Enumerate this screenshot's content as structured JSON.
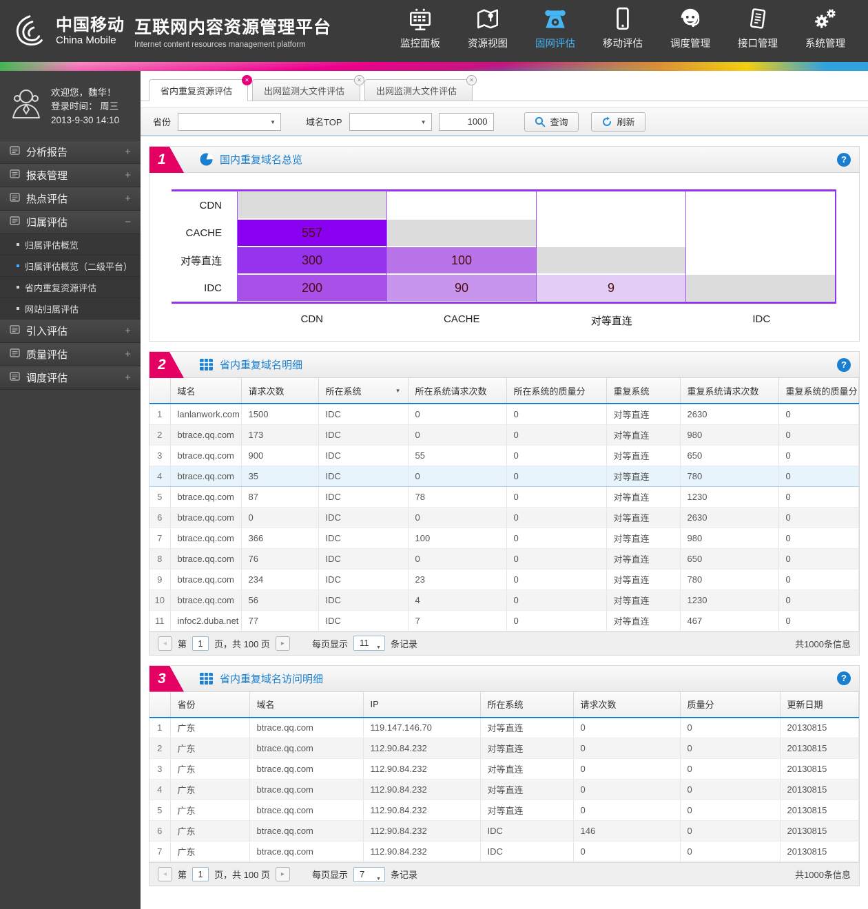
{
  "header": {
    "brand_cn": "中国移动",
    "brand_en": "China Mobile",
    "title": "互联网内容资源管理平台",
    "subtitle": "Internet content resources management platform",
    "nav": [
      {
        "label": "监控面板",
        "icon": "dashboard-icon",
        "active": false
      },
      {
        "label": "资源视图",
        "icon": "map-icon",
        "active": false
      },
      {
        "label": "固网评估",
        "icon": "phone-icon",
        "active": true
      },
      {
        "label": "移动评估",
        "icon": "mobile-icon",
        "active": false
      },
      {
        "label": "调度管理",
        "icon": "agent-icon",
        "active": false
      },
      {
        "label": "接口管理",
        "icon": "interface-icon",
        "active": false
      },
      {
        "label": "系统管理",
        "icon": "gears-icon",
        "active": false
      }
    ],
    "active_color": "#45b5f5"
  },
  "sidebar": {
    "welcome": "欢迎您，魏华！",
    "login_label": "登录时间：  周三",
    "login_datetime": "2013-9-30   14:10",
    "menu": [
      {
        "label": "分析报告",
        "state": "+"
      },
      {
        "label": "报表管理",
        "state": "+"
      },
      {
        "label": "热点评估",
        "state": "+"
      },
      {
        "label": "归属评估",
        "state": "−",
        "children": [
          {
            "label": "归属评估概览",
            "bullet": "#cfcfcf"
          },
          {
            "label": "归属评估概览（二级平台）",
            "bullet": "#4da6ff"
          },
          {
            "label": "省内重复资源评估",
            "bullet": "#cfcfcf"
          },
          {
            "label": "网站归属评估",
            "bullet": "#cfcfcf"
          }
        ]
      },
      {
        "label": "引入评估",
        "state": "+"
      },
      {
        "label": "质量评估",
        "state": "+"
      },
      {
        "label": "调度评估",
        "state": "+"
      }
    ]
  },
  "tabs": [
    {
      "label": "省内重复资源评估",
      "active": true
    },
    {
      "label": "出网监测大文件评估",
      "active": false
    },
    {
      "label": "出网监测大文件评估",
      "active": false
    }
  ],
  "filter": {
    "province_label": "省份",
    "domain_top_label": "域名TOP",
    "top_value": "1000",
    "search_label": "查询",
    "refresh_label": "刷新"
  },
  "section1": {
    "num": "1",
    "title": "国内重复域名总览",
    "help": "?"
  },
  "chart_data": {
    "type": "heatmap",
    "title": "国内重复域名总览",
    "rows": [
      "CDN",
      "CACHE",
      "对等直连",
      "IDC"
    ],
    "cols": [
      "CDN",
      "CACHE",
      "对等直连",
      "IDC"
    ],
    "cells": [
      {
        "r": 0,
        "c": 0,
        "diag": true
      },
      {
        "r": 1,
        "c": 0,
        "v": 557,
        "color": "#8a00f0"
      },
      {
        "r": 1,
        "c": 1,
        "diag": true
      },
      {
        "r": 2,
        "c": 0,
        "v": 300,
        "color": "#9633ee"
      },
      {
        "r": 2,
        "c": 1,
        "v": 100,
        "color": "#b973e9"
      },
      {
        "r": 2,
        "c": 2,
        "diag": true
      },
      {
        "r": 3,
        "c": 0,
        "v": 200,
        "color": "#a851e8"
      },
      {
        "r": 3,
        "c": 1,
        "v": 90,
        "color": "#c795ee"
      },
      {
        "r": 3,
        "c": 2,
        "v": 9,
        "color": "#e3cdf7"
      },
      {
        "r": 3,
        "c": 3,
        "diag": true
      }
    ],
    "diag_color": "#dcdcdc",
    "border_color": "#9333ea",
    "value_color": "#4a0d0d"
  },
  "section2": {
    "num": "2",
    "title": "省内重复域名明细",
    "help": "?",
    "columns": [
      "域名",
      "请求次数",
      "所在系统",
      "所在系统请求次数",
      "所在系统的质量分",
      "重复系统",
      "重复系统请求次数",
      "重复系统的质量分"
    ],
    "sort_column_index": 2,
    "selected_row_index": 3,
    "rows": [
      [
        "lanlanwork.com",
        "1500",
        "IDC",
        "0",
        "0",
        "对等直连",
        "2630",
        "0"
      ],
      [
        "btrace.qq.com",
        "173",
        "IDC",
        "0",
        "0",
        "对等直连",
        "980",
        "0"
      ],
      [
        "btrace.qq.com",
        "900",
        "IDC",
        "55",
        "0",
        "对等直连",
        "650",
        "0"
      ],
      [
        "btrace.qq.com",
        "35",
        "IDC",
        "0",
        "0",
        "对等直连",
        "780",
        "0"
      ],
      [
        "btrace.qq.com",
        "87",
        "IDC",
        "78",
        "0",
        "对等直连",
        "1230",
        "0"
      ],
      [
        "btrace.qq.com",
        "0",
        "IDC",
        "0",
        "0",
        "对等直连",
        "2630",
        "0"
      ],
      [
        "btrace.qq.com",
        "366",
        "IDC",
        "100",
        "0",
        "对等直连",
        "980",
        "0"
      ],
      [
        "btrace.qq.com",
        "76",
        "IDC",
        "0",
        "0",
        "对等直连",
        "650",
        "0"
      ],
      [
        "btrace.qq.com",
        "234",
        "IDC",
        "23",
        "0",
        "对等直连",
        "780",
        "0"
      ],
      [
        "btrace.qq.com",
        "56",
        "IDC",
        "4",
        "0",
        "对等直连",
        "1230",
        "0"
      ],
      [
        "infoc2.duba.net",
        "77",
        "IDC",
        "7",
        "0",
        "对等直连",
        "467",
        "0"
      ]
    ],
    "pager": {
      "prefix": "第",
      "page": "1",
      "mid": "页，共 100 页",
      "per_label": "每页显示",
      "per_page": "11",
      "suffix": "条记录",
      "total": "共1000条信息"
    }
  },
  "section3": {
    "num": "3",
    "title": "省内重复域名访问明细",
    "help": "?",
    "columns": [
      "省份",
      "域名",
      "IP",
      "所在系统",
      "请求次数",
      "质量分",
      "更新日期"
    ],
    "rows": [
      [
        "广东",
        "btrace.qq.com",
        "119.147.146.70",
        "对等直连",
        "0",
        "0",
        "20130815"
      ],
      [
        "广东",
        "btrace.qq.com",
        "112.90.84.232",
        "对等直连",
        "0",
        "0",
        "20130815"
      ],
      [
        "广东",
        "btrace.qq.com",
        "112.90.84.232",
        "对等直连",
        "0",
        "0",
        "20130815"
      ],
      [
        "广东",
        "btrace.qq.com",
        "112.90.84.232",
        "对等直连",
        "0",
        "0",
        "20130815"
      ],
      [
        "广东",
        "btrace.qq.com",
        "112.90.84.232",
        "对等直连",
        "0",
        "0",
        "20130815"
      ],
      [
        "广东",
        "btrace.qq.com",
        "112.90.84.232",
        "IDC",
        "146",
        "0",
        "20130815"
      ],
      [
        "广东",
        "btrace.qq.com",
        "112.90.84.232",
        "IDC",
        "0",
        "0",
        "20130815"
      ]
    ],
    "pager": {
      "prefix": "第",
      "page": "1",
      "mid": "页，共 100 页",
      "per_label": "每页显示",
      "per_page": "7",
      "suffix": "条记录",
      "total": "共1000条信息"
    }
  }
}
